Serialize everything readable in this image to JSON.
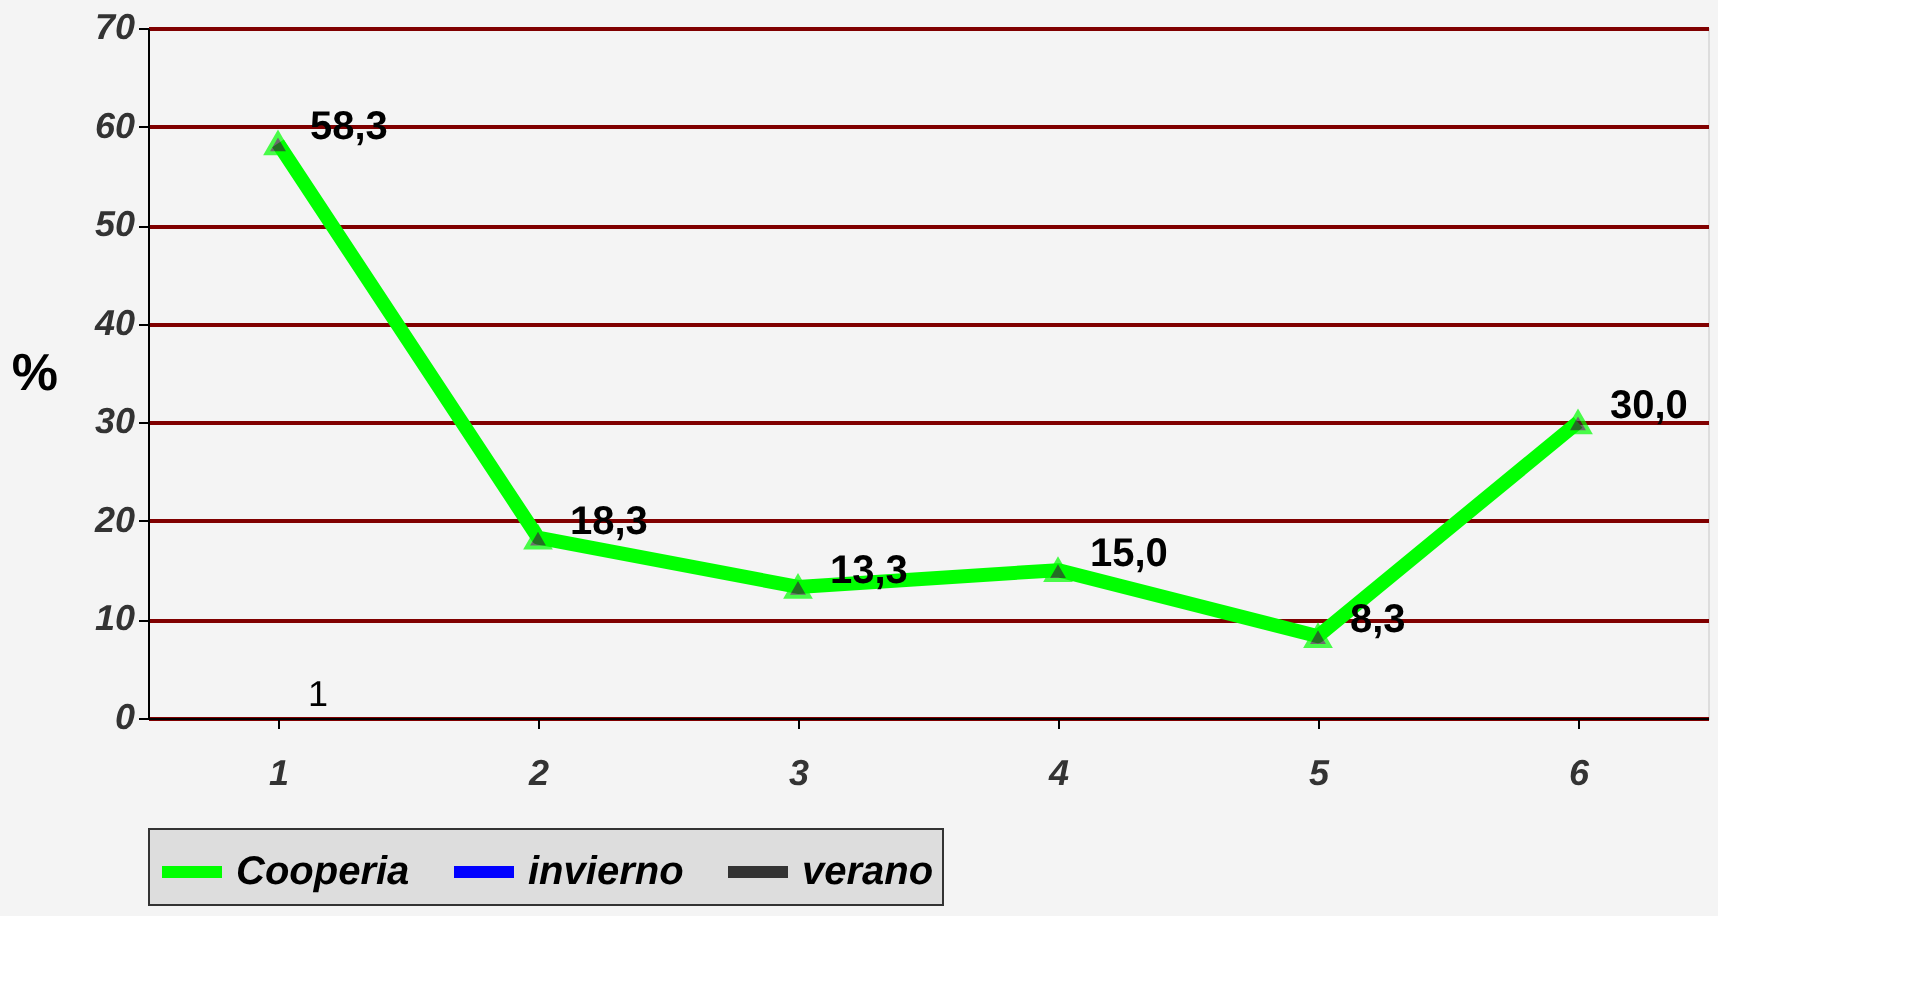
{
  "chart_data": {
    "type": "line",
    "ylabel": "%",
    "categories": [
      "1",
      "2",
      "3",
      "4",
      "5",
      "6"
    ],
    "series": [
      {
        "name": "Cooperia",
        "color": "#00ff00",
        "values": [
          58.3,
          18.3,
          13.3,
          15.0,
          8.3,
          30.0
        ],
        "value_labels": [
          "58,3",
          "18,3",
          "13,3",
          "15,0",
          "8,3",
          "30,0"
        ]
      },
      {
        "name": "invierno",
        "color": "#0000ff",
        "values": [
          null,
          null,
          null,
          null,
          null,
          null
        ]
      },
      {
        "name": "verano",
        "color": "#333333",
        "values": [
          null,
          null,
          null,
          null,
          null,
          null
        ]
      }
    ],
    "ylim": [
      0,
      70
    ],
    "yticks": [
      0,
      10,
      20,
      30,
      40,
      50,
      60,
      70
    ],
    "grid": "y",
    "legend": "bottom",
    "marker": "triangle",
    "line_style": "solid",
    "annotations": [
      "1"
    ]
  }
}
